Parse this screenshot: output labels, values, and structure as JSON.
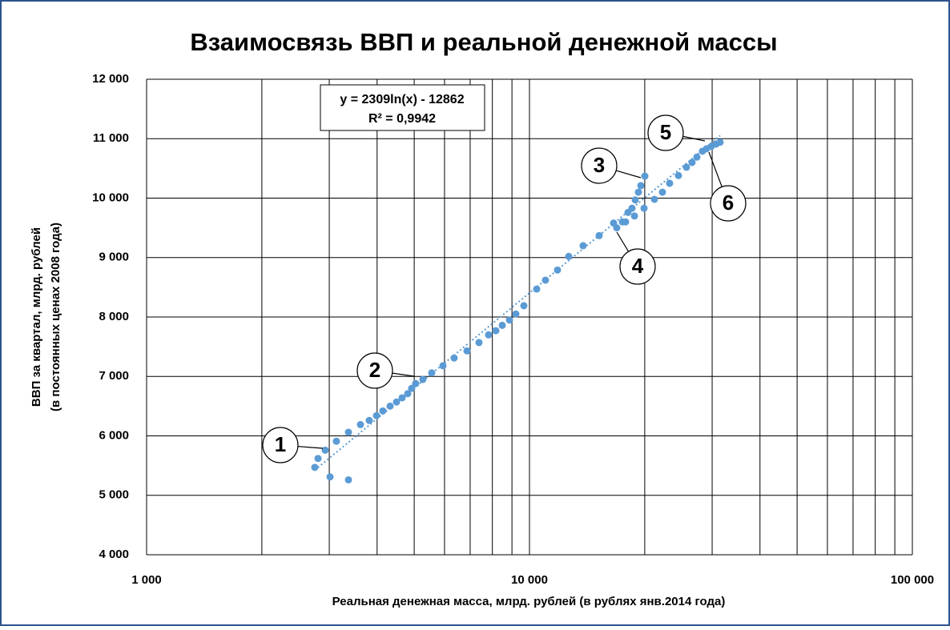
{
  "chart_data": {
    "type": "scatter",
    "title": "Взаимосвязь ВВП и реальной денежной массы",
    "x_label": "Реальная денежная масса, млрд. рублей (в рублях янв.2014 года)",
    "y_label": [
      "ВВП за квартал, млрд. рублей",
      "(в постоянных ценах 2008 года)"
    ],
    "x_log": true,
    "grid": true,
    "color": "#5b9bd5",
    "xlim": [
      1000,
      100000
    ],
    "xticks": [
      {
        "value": 1000,
        "label": "1 000"
      },
      {
        "value": 10000,
        "label": "10 000"
      },
      {
        "value": 100000,
        "label": "100 000"
      }
    ],
    "ylim": [
      4000,
      12000
    ],
    "yticks": [
      {
        "value": 4000,
        "label": "4 000"
      },
      {
        "value": 5000,
        "label": "5 000"
      },
      {
        "value": 6000,
        "label": "6 000"
      },
      {
        "value": 7000,
        "label": "7 000"
      },
      {
        "value": 8000,
        "label": "8 000"
      },
      {
        "value": 9000,
        "label": "9 000"
      },
      {
        "value": 10000,
        "label": "10 000"
      },
      {
        "value": 11000,
        "label": "11 000"
      },
      {
        "value": 12000,
        "label": "12 000"
      }
    ],
    "series": [
      {
        "name": "ВВП",
        "x": [
          2750,
          2804,
          2928,
          3014,
          3131,
          3367,
          3367,
          3619,
          3815,
          3985,
          4141,
          4325,
          4495,
          4649,
          4808,
          4925,
          5045,
          5268,
          5556,
          5943,
          6357,
          6868,
          7382,
          7822,
          8168,
          8489,
          8867,
          9213,
          9669,
          10443,
          11010,
          11836,
          12664,
          13806,
          15206,
          16585,
          16905,
          17486,
          17825,
          18086,
          18528,
          18890,
          19256,
          19538,
          20014,
          18800,
          19918,
          21203,
          22249,
          23232,
          24497,
          25704,
          26589,
          27367,
          28307,
          28993,
          29843,
          30718,
          31469
        ],
        "values": [
          5470,
          5620,
          5760,
          5310,
          5910,
          6060,
          5260,
          6190,
          6260,
          6340,
          6420,
          6500,
          6570,
          6640,
          6710,
          6800,
          6880,
          6950,
          7060,
          7180,
          7310,
          7430,
          7570,
          7700,
          7770,
          7860,
          7950,
          8050,
          8190,
          8470,
          8620,
          8790,
          9020,
          9200,
          9370,
          9580,
          9500,
          9600,
          9600,
          9760,
          9830,
          9970,
          10100,
          10210,
          10370,
          9700,
          9830,
          9980,
          10100,
          10250,
          10380,
          10520,
          10600,
          10690,
          10790,
          10830,
          10870,
          10910,
          10940
        ]
      }
    ],
    "trendline": {
      "type": "log",
      "a": 2309,
      "b": -12862,
      "equation": "y = 2309ln(x) - 12862",
      "r2": "R² = 0,9942"
    },
    "annotations": [
      "1",
      "2",
      "3",
      "4",
      "5",
      "6"
    ]
  }
}
